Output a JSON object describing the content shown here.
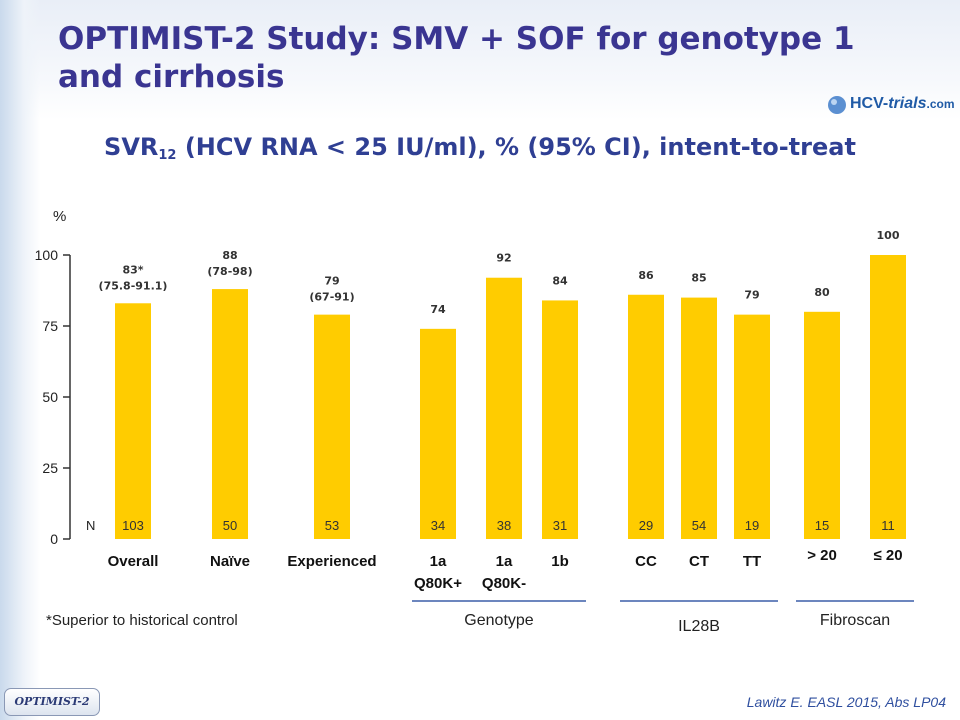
{
  "slide": {
    "title": "OPTIMIST-2 Study: SMV + SOF for genotype 1 and cirrhosis",
    "logo_text_a": "HCV-",
    "logo_text_b": "trials",
    "logo_text_c": ".com",
    "badge": "OPTIMIST-2",
    "footnote": "*Superior to historical control",
    "citation": "Lawitz E. EASL 2015, Abs LP04"
  },
  "chart_data": {
    "type": "bar",
    "title_main": "SVR",
    "title_sub": "12",
    "title_rest": " (HCV RNA < 25 IU/ml), % (95% CI), intent-to-treat",
    "ylabel": "%",
    "ylim": [
      0,
      100
    ],
    "yticks": [
      "0",
      "25",
      "50",
      "75",
      "100"
    ],
    "n_label": "N",
    "bar_color": "#ffcc00",
    "categories": [
      {
        "label": "Overall",
        "label2": "",
        "value": 83,
        "value_label": "83*",
        "ci": "(75.8-91.1)",
        "n": "103"
      },
      {
        "label": "Naïve",
        "label2": "",
        "value": 88,
        "value_label": "88",
        "ci": "(78-98)",
        "n": "50"
      },
      {
        "label": "Experienced",
        "label2": "",
        "value": 79,
        "value_label": "79",
        "ci": "(67-91)",
        "n": "53"
      },
      {
        "label": "1a",
        "label2": "Q80K+",
        "value": 74,
        "value_label": "74",
        "ci": "",
        "n": "34"
      },
      {
        "label": "1a",
        "label2": "Q80K-",
        "value": 92,
        "value_label": "92",
        "ci": "",
        "n": "38"
      },
      {
        "label": "1b",
        "label2": "",
        "value": 84,
        "value_label": "84",
        "ci": "",
        "n": "31"
      },
      {
        "label": "CC",
        "label2": "",
        "value": 86,
        "value_label": "86",
        "ci": "",
        "n": "29"
      },
      {
        "label": "CT",
        "label2": "",
        "value": 85,
        "value_label": "85",
        "ci": "",
        "n": "54"
      },
      {
        "label": "TT",
        "label2": "",
        "value": 79,
        "value_label": "79",
        "ci": "",
        "n": "19"
      },
      {
        "label": "> 20",
        "label2": "",
        "value": 80,
        "value_label": "80",
        "ci": "",
        "n": "15"
      },
      {
        "label": "≤ 20",
        "label2": "",
        "value": 100,
        "value_label": "100",
        "ci": "",
        "n": "11"
      }
    ],
    "groups": [
      {
        "label": "Genotype",
        "from": 3,
        "to": 5
      },
      {
        "label": "IL28B",
        "from": 6,
        "to": 8
      },
      {
        "label": "Fibroscan",
        "from": 9,
        "to": 10
      }
    ],
    "grid": false
  }
}
